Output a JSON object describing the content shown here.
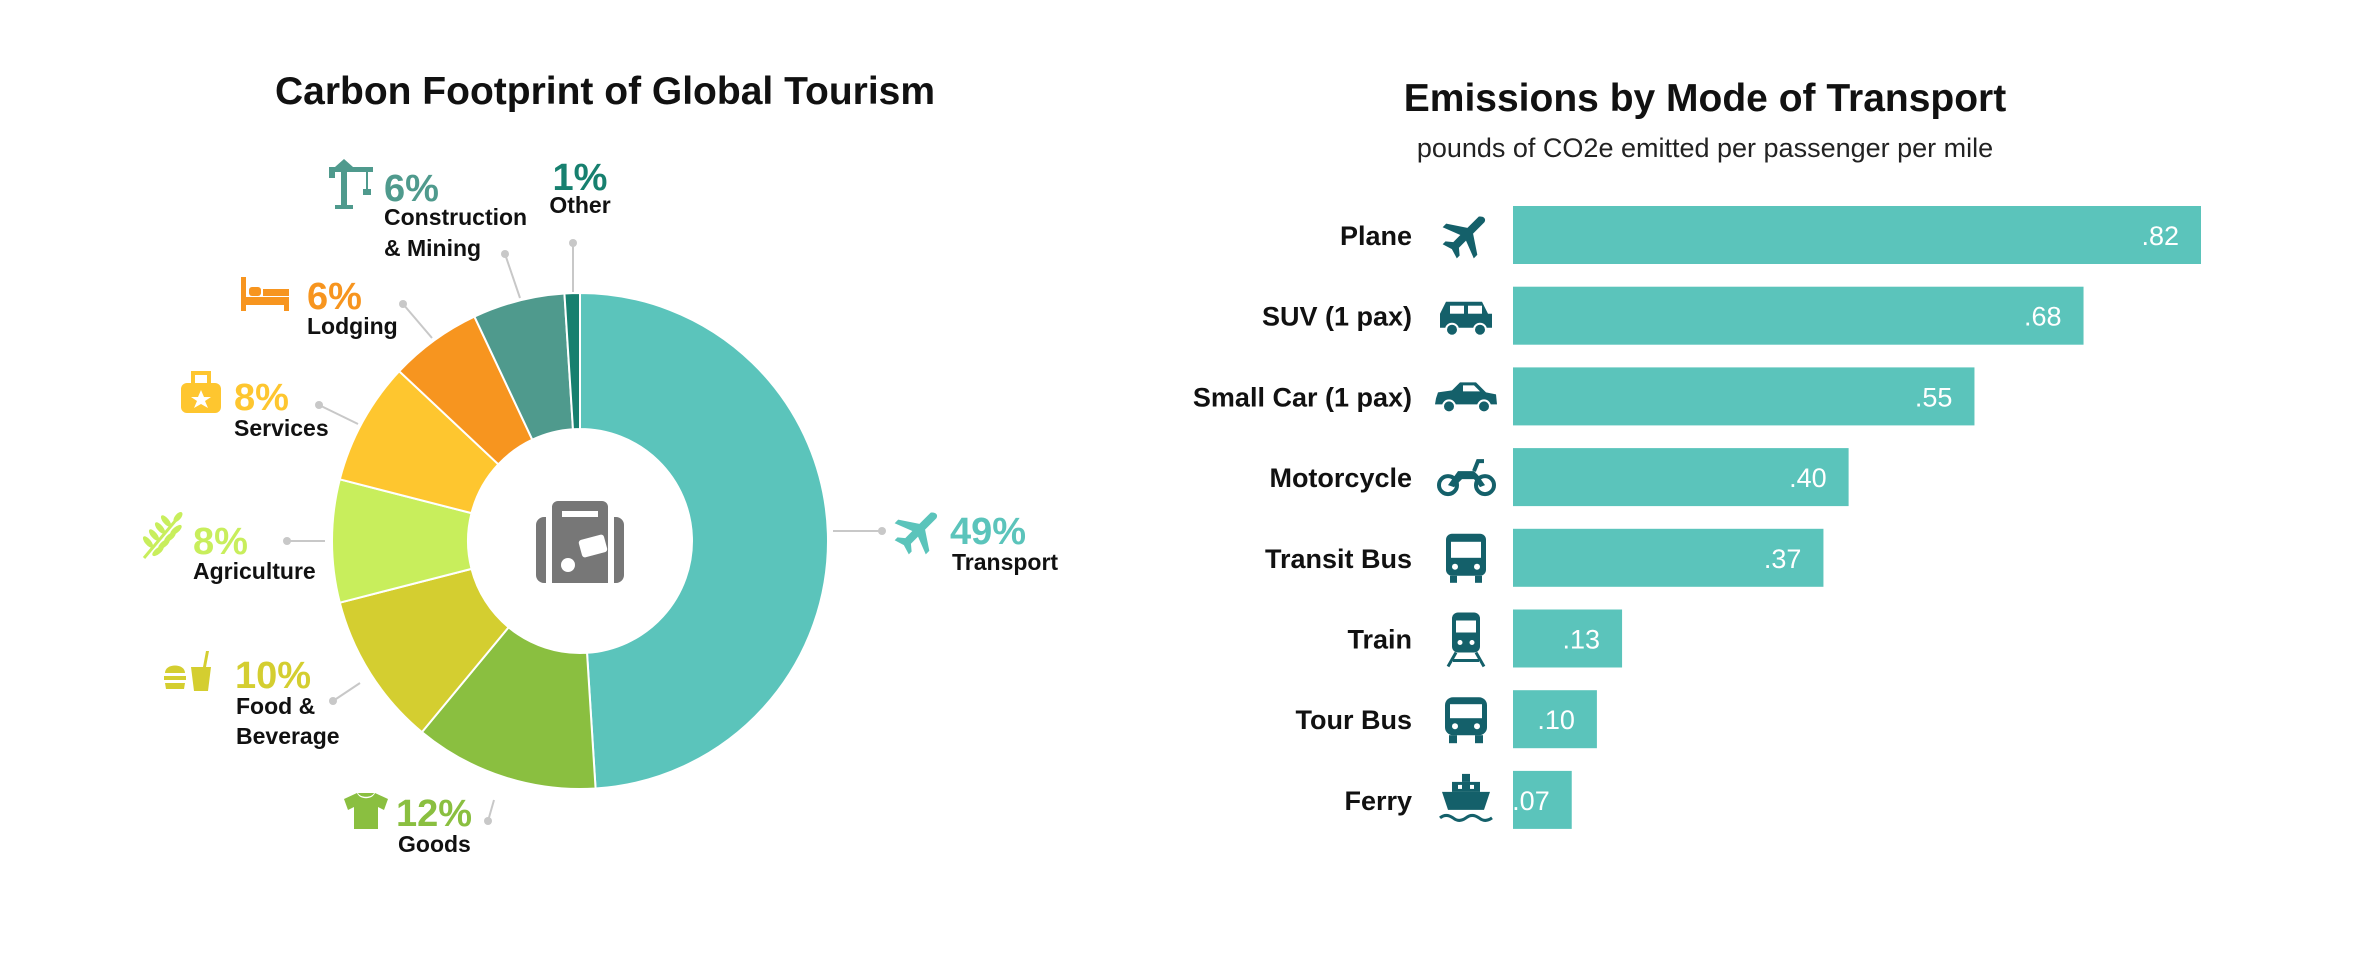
{
  "chart_data": [
    {
      "type": "pie",
      "title": "Carbon Footprint of Global Tourism",
      "center_icon": "suitcase-icon",
      "slices": [
        {
          "label": "Transport",
          "value": 49,
          "pct_label": "49%",
          "label_lines": [
            "Transport"
          ],
          "color": "#5bc4bb",
          "icon": "plane-icon"
        },
        {
          "label": "Goods",
          "value": 12,
          "pct_label": "12%",
          "label_lines": [
            "Goods"
          ],
          "color": "#8abf40",
          "icon": "shirt-icon"
        },
        {
          "label": "Food & Beverage",
          "value": 10,
          "pct_label": "10%",
          "label_lines": [
            "Food &",
            "Beverage"
          ],
          "color": "#d4ce30",
          "icon": "food-icon"
        },
        {
          "label": "Agriculture",
          "value": 8,
          "pct_label": "8%",
          "label_lines": [
            "Agriculture"
          ],
          "color": "#c8ee5c",
          "icon": "wheat-icon"
        },
        {
          "label": "Services",
          "value": 8,
          "pct_label": "8%",
          "label_lines": [
            "Services"
          ],
          "color": "#fec62f",
          "icon": "services-icon"
        },
        {
          "label": "Lodging",
          "value": 6,
          "pct_label": "6%",
          "label_lines": [
            "Lodging"
          ],
          "color": "#f7951f",
          "icon": "bed-icon"
        },
        {
          "label": "Construction & Mining",
          "value": 6,
          "pct_label": "6%",
          "label_lines": [
            "Construction",
            "& Mining"
          ],
          "color": "#4f9a8d",
          "icon": "crane-icon"
        },
        {
          "label": "Other",
          "value": 1,
          "pct_label": "1%",
          "label_lines": [
            "Other"
          ],
          "color": "#17806f",
          "icon": ""
        }
      ]
    },
    {
      "type": "bar",
      "orientation": "horizontal",
      "title": "Emissions by Mode of Transport",
      "subtitle": "pounds of CO2e emitted per passenger per mile",
      "categories": [
        "Plane",
        "SUV (1 pax)",
        "Small Car (1 pax)",
        "Motorcycle",
        "Transit Bus",
        "Train",
        "Tour Bus",
        "Ferry"
      ],
      "values": [
        0.82,
        0.68,
        0.55,
        0.4,
        0.37,
        0.13,
        0.1,
        0.07
      ],
      "value_labels": [
        ".82",
        ".68",
        ".55",
        ".40",
        ".37",
        ".13",
        ".10",
        ".07"
      ],
      "icons": [
        "plane-icon",
        "suv-icon",
        "small-car-icon",
        "motorcycle-icon",
        "transit-bus-icon",
        "train-icon",
        "tour-bus-icon",
        "ferry-icon"
      ],
      "bar_color": "#5bc4bb",
      "icon_color": "#14606a",
      "xlim": [
        0,
        0.82
      ]
    }
  ]
}
